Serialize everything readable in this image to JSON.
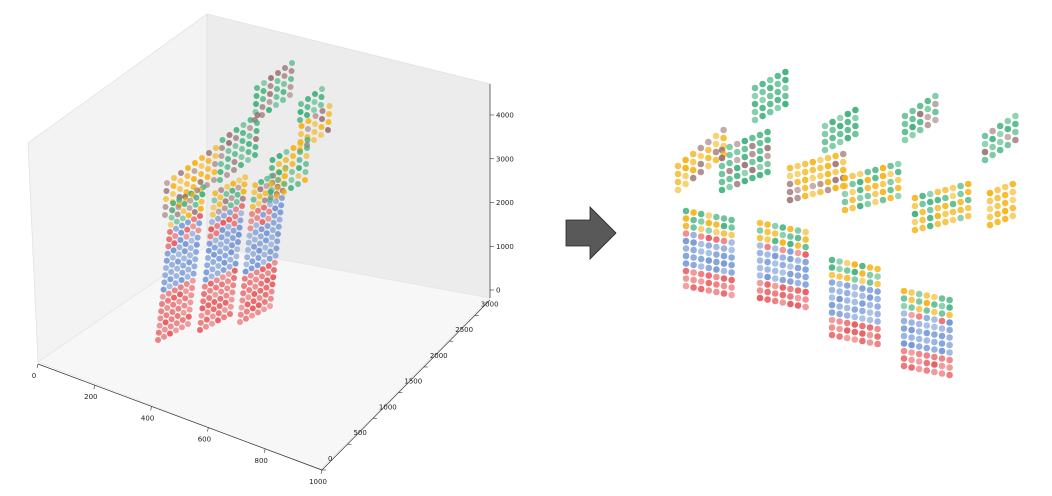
{
  "chart_data": [
    {
      "type": "scatter3d",
      "title": "",
      "x_ticks": [
        "0",
        "200",
        "400",
        "600",
        "800",
        "1000"
      ],
      "y_ticks": [
        "0",
        "500",
        "1000",
        "1500",
        "2000",
        "2500",
        "3000"
      ],
      "z_ticks": [
        "0",
        "1000",
        "2000",
        "3000",
        "4000"
      ],
      "xlim": [
        0,
        1000
      ],
      "ylim": [
        0,
        3300
      ],
      "zlim": [
        0,
        4400
      ],
      "series": [
        {
          "color": "#e8585b"
        },
        {
          "color": "#7094d4"
        },
        {
          "color": "#3db07b"
        },
        {
          "color": "#f5b314"
        },
        {
          "color": "#9b7373"
        }
      ],
      "structure": "three stacked grid blocks with a step staircase on top; layers colored red (bottom-left), blue (middle), green, orange and brown (top)"
    },
    {
      "type": "scatter3d",
      "title": "",
      "axes_visible": false,
      "series": [
        {
          "color": "#e8585b"
        },
        {
          "color": "#7094d4"
        },
        {
          "color": "#3db07b"
        },
        {
          "color": "#f5b314"
        },
        {
          "color": "#9b7373"
        }
      ],
      "structure": "rotated view of the same point cloud without axes"
    }
  ],
  "arrow_icon": "right-arrow-icon",
  "arrow_color": "#595959"
}
